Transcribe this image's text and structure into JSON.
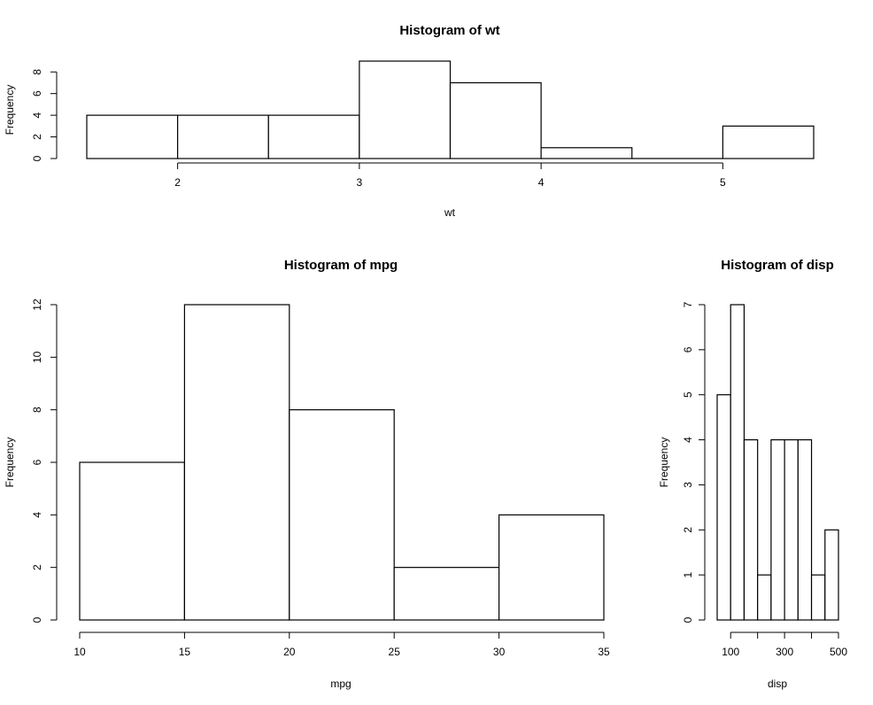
{
  "chart_data": [
    {
      "id": "wt",
      "type": "bar",
      "title": "Histogram of wt",
      "xlabel": "wt",
      "ylabel": "Frequency",
      "bins": [
        {
          "start": 1.5,
          "end": 2.0,
          "count": 4
        },
        {
          "start": 2.0,
          "end": 2.5,
          "count": 4
        },
        {
          "start": 2.5,
          "end": 3.0,
          "count": 4
        },
        {
          "start": 3.0,
          "end": 3.5,
          "count": 9
        },
        {
          "start": 3.5,
          "end": 4.0,
          "count": 7
        },
        {
          "start": 4.0,
          "end": 4.5,
          "count": 1
        },
        {
          "start": 4.5,
          "end": 5.0,
          "count": 0
        },
        {
          "start": 5.0,
          "end": 5.5,
          "count": 3
        }
      ],
      "xticks": [
        2,
        3,
        4,
        5
      ],
      "yticks": [
        0,
        2,
        4,
        6,
        8
      ],
      "xlim": [
        1.5,
        5.5
      ],
      "ylim": [
        0,
        9
      ]
    },
    {
      "id": "mpg",
      "type": "bar",
      "title": "Histogram of mpg",
      "xlabel": "mpg",
      "ylabel": "Frequency",
      "bins": [
        {
          "start": 10,
          "end": 15,
          "count": 6
        },
        {
          "start": 15,
          "end": 20,
          "count": 12
        },
        {
          "start": 20,
          "end": 25,
          "count": 8
        },
        {
          "start": 25,
          "end": 30,
          "count": 2
        },
        {
          "start": 30,
          "end": 35,
          "count": 4
        }
      ],
      "xticks": [
        10,
        15,
        20,
        25,
        30,
        35
      ],
      "yticks": [
        0,
        2,
        4,
        6,
        8,
        10,
        12
      ],
      "xlim": [
        10,
        35
      ],
      "ylim": [
        0,
        12
      ]
    },
    {
      "id": "disp",
      "type": "bar",
      "title": "Histogram of disp",
      "xlabel": "disp",
      "ylabel": "Frequency",
      "bins": [
        {
          "start": 50,
          "end": 100,
          "count": 5
        },
        {
          "start": 100,
          "end": 150,
          "count": 7
        },
        {
          "start": 150,
          "end": 200,
          "count": 4
        },
        {
          "start": 200,
          "end": 250,
          "count": 1
        },
        {
          "start": 250,
          "end": 300,
          "count": 4
        },
        {
          "start": 300,
          "end": 350,
          "count": 4
        },
        {
          "start": 350,
          "end": 400,
          "count": 4
        },
        {
          "start": 400,
          "end": 450,
          "count": 1
        },
        {
          "start": 450,
          "end": 500,
          "count": 2
        }
      ],
      "xticks": [
        100,
        300,
        500
      ],
      "xticks_minor": [
        200,
        400
      ],
      "yticks": [
        0,
        1,
        2,
        3,
        4,
        5,
        6,
        7
      ],
      "xlim": [
        50,
        500
      ],
      "ylim": [
        0,
        7
      ]
    }
  ]
}
